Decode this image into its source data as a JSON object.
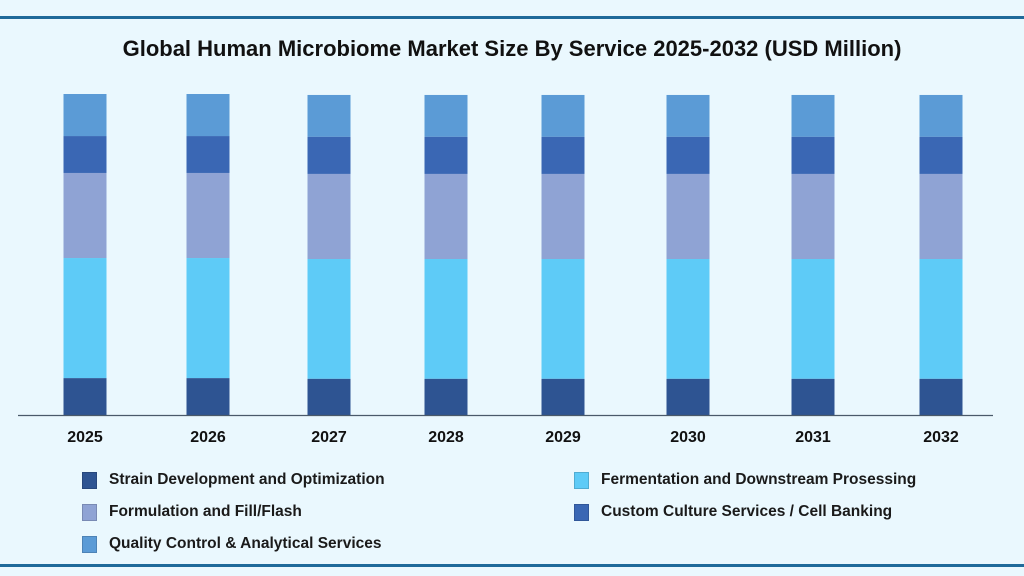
{
  "chart_data": {
    "type": "stacked-bar",
    "title": "Global Human Microbiome Market Size By Service 2025-2032 (USD Million)",
    "xlabel": "",
    "ylabel": "",
    "categories": [
      "2025",
      "2026",
      "2027",
      "2028",
      "2029",
      "2030",
      "2031",
      "2032"
    ],
    "y_axis_shown": false,
    "grid": false,
    "legend_position": "bottom",
    "series": [
      {
        "name": "Strain Development and Optimization",
        "color": "#2e5492",
        "values": [
          11.5,
          11.5,
          11.3,
          11.3,
          11.3,
          11.3,
          11.3,
          11.3
        ]
      },
      {
        "name": "Fermentation and Downstream Prosessing",
        "color": "#5ecbf7",
        "values": [
          37.4,
          37.4,
          37.3,
          37.3,
          37.3,
          37.3,
          37.3,
          37.3
        ]
      },
      {
        "name": "Formulation and Fill/Flash",
        "color": "#8fa3d4",
        "values": [
          26.5,
          26.5,
          26.5,
          26.5,
          26.5,
          26.5,
          26.5,
          26.5
        ]
      },
      {
        "name": "Custom Culture Services / Cell Banking",
        "color": "#3a67b4",
        "values": [
          11.5,
          11.5,
          11.6,
          11.6,
          11.6,
          11.6,
          11.6,
          11.6
        ]
      },
      {
        "name": "Quality Control & Analytical Services",
        "color": "#5b9bd6",
        "values": [
          13.1,
          13.1,
          13.0,
          13.0,
          13.0,
          13.0,
          13.0,
          13.0
        ]
      }
    ],
    "legend_order": [
      0,
      1,
      2,
      3,
      4
    ]
  }
}
